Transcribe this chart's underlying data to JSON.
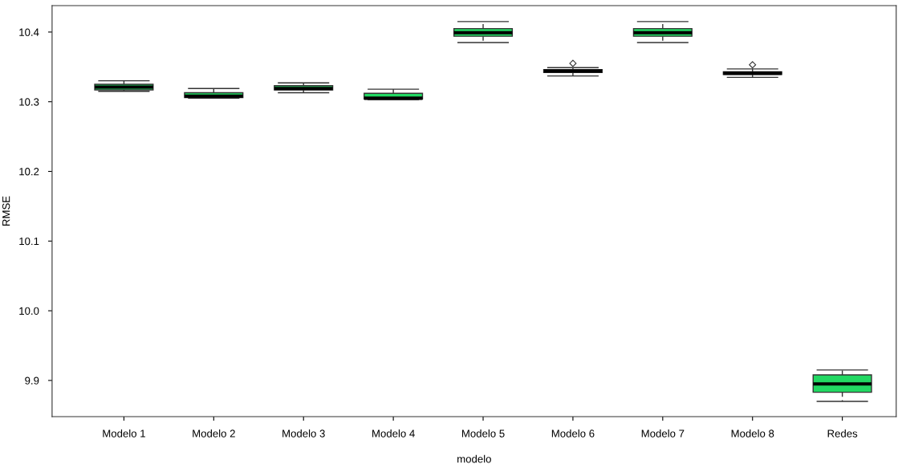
{
  "chart_data": {
    "type": "box",
    "xlabel": "modelo",
    "ylabel": "RMSE",
    "color": "#22d862",
    "grid": false,
    "legend": false,
    "categories": [
      "Modelo 1",
      "Modelo 2",
      "Modelo 3",
      "Modelo 4",
      "Modelo 5",
      "Modelo 6",
      "Modelo 7",
      "Modelo 8",
      "Redes"
    ],
    "ylim": [
      9.848,
      10.438
    ],
    "yticks": [
      9.9,
      {
        "value": 10.0,
        "label": "10.0"
      },
      10.1,
      10.2,
      10.3,
      10.4
    ],
    "boxes": [
      {
        "low": 10.315,
        "q1": 10.317,
        "median": 10.321,
        "q3": 10.325,
        "high": 10.33
      },
      {
        "low": 10.305,
        "q1": 10.306,
        "median": 10.308,
        "q3": 10.313,
        "high": 10.319
      },
      {
        "low": 10.313,
        "q1": 10.317,
        "median": 10.319,
        "q3": 10.323,
        "high": 10.327
      },
      {
        "low": 10.303,
        "q1": 10.304,
        "median": 10.305,
        "q3": 10.312,
        "high": 10.318
      },
      {
        "low": 10.385,
        "q1": 10.394,
        "median": 10.399,
        "q3": 10.405,
        "high": 10.415
      },
      {
        "low": 10.337,
        "q1": 10.342,
        "median": 10.344,
        "q3": 10.346,
        "high": 10.349,
        "outliers": [
          10.355
        ]
      },
      {
        "low": 10.385,
        "q1": 10.394,
        "median": 10.399,
        "q3": 10.405,
        "high": 10.415
      },
      {
        "low": 10.335,
        "q1": 10.339,
        "median": 10.341,
        "q3": 10.343,
        "high": 10.347,
        "outliers": [
          10.353
        ]
      },
      {
        "low": 9.87,
        "q1": 9.883,
        "median": 9.895,
        "q3": 9.908,
        "high": 9.915
      }
    ]
  }
}
